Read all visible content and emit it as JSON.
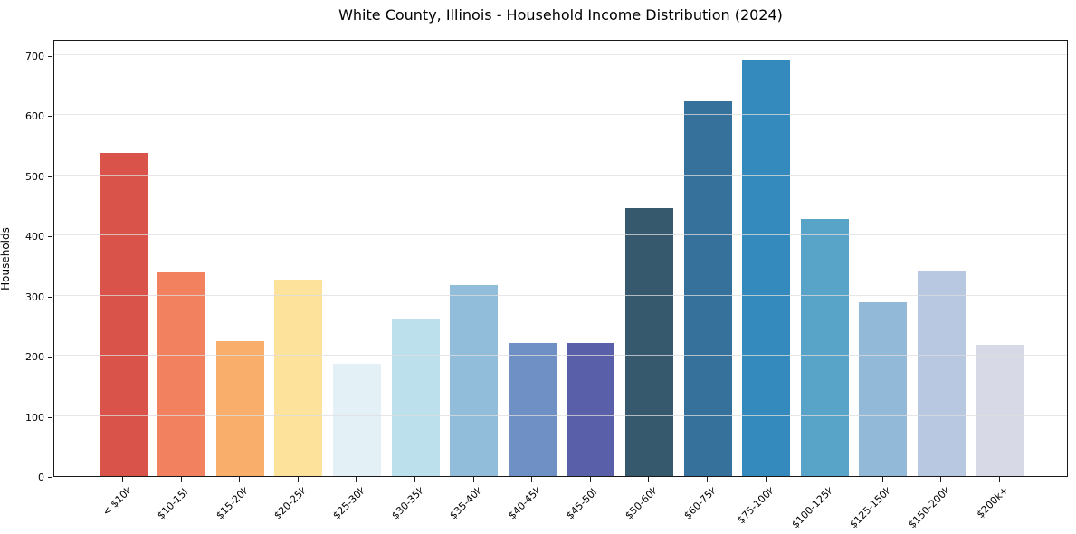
{
  "title": "White County, Illinois - Household Income Distribution (2024)",
  "chart_data": {
    "type": "bar",
    "title": "White County, Illinois - Household Income Distribution (2024)",
    "xlabel": "",
    "ylabel": "Households",
    "categories": [
      "< $10k",
      "$10-15k",
      "$15-20k",
      "$20-25k",
      "$25-30k",
      "$30-35k",
      "$35-40k",
      "$40-45k",
      "$45-50k",
      "$50-60k",
      "$60-75k",
      "$75-100k",
      "$100-125k",
      "$125-150k",
      "$150-200k",
      "$200k+"
    ],
    "values": [
      537,
      338,
      224,
      327,
      187,
      260,
      318,
      222,
      221,
      445,
      623,
      692,
      428,
      289,
      342,
      218
    ],
    "bar_colors": [
      "#d9534b",
      "#f2815f",
      "#f9ae6c",
      "#fce29b",
      "#e3f1f7",
      "#bce0ec",
      "#91bcda",
      "#6e90c5",
      "#5a5fa9",
      "#37596d",
      "#35719b",
      "#348abc",
      "#58a3c8",
      "#93b9d8",
      "#b8c8e0",
      "#d8d9e6"
    ],
    "yticks": [
      0,
      100,
      200,
      300,
      400,
      500,
      600,
      700
    ],
    "ylim": [
      0,
      727
    ],
    "grid": "horizontal",
    "legend_position": "none",
    "plot_background": "#ffffff"
  }
}
